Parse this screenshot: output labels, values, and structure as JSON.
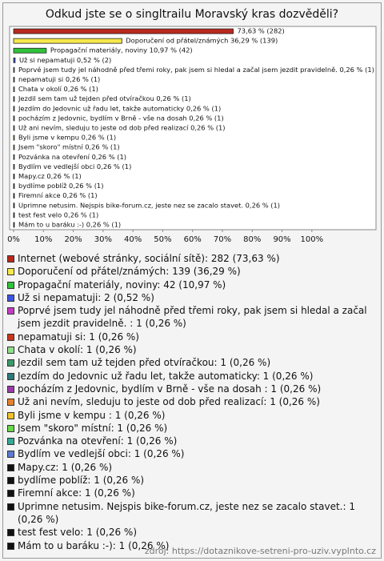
{
  "chart_data": {
    "type": "bar",
    "orientation": "horizontal",
    "title": "Odkud jste se o singltrailu Moravský kras dozvěděli?",
    "values": [
      73.63,
      36.29,
      10.97,
      0.52,
      0.26,
      0.26,
      0.26,
      0.26,
      0.26,
      0.26,
      0.26,
      0.26,
      0.26,
      0.26,
      0.26,
      0.26,
      0.26,
      0.26,
      0.26,
      0.26,
      0.26
    ],
    "value_labels": [
      "73,63 % (282)",
      "Doporučení od přátel/známých 36,29 % (139)",
      "Propagační materiály, noviny 10,97 % (42)",
      "Už si nepamatuji 0,52 % (2)",
      "Poprvé jsem tudy jel náhodně před třemi roky, pak jsem si hledal a začal jsem jezdit pravidelně.  0,26 % (1)",
      "nepamatuji si 0,26 % (1)",
      "Chata v okolí 0,26 % (1)",
      "Jezdil sem tam už tejden před otvíračkou 0,26 % (1)",
      "Jezdím do Jedovnic už řadu let,  takže automaticky 0,26 % (1)",
      "pocházím z Jedovnic, bydlím v Brně - vše na dosah  0,26 % (1)",
      "Už ani nevím, sleduju to jeste od dob před realizací 0,26 % (1)",
      "Byli jsme v kempu  0,26 % (1)",
      "Jsem \"skoro\" místní 0,26 % (1)",
      "Pozvánka na otevření 0,26 % (1)",
      "Bydlím ve vedlejší obci 0,26 % (1)",
      "Mapy.cz 0,26 % (1)",
      "bydlíme poblíž 0,26 % (1)",
      "Firemní akce 0,26 % (1)",
      "Uprimne netusim. Nejspis bike-forum.cz, jeste nez se zacalo stavet.  0,26 % (1)",
      "test fest velo 0,26 % (1)",
      "Mám to u baráku :-) 0,26 % (1)"
    ],
    "legend": [
      "Internet (webové stránky, sociální sítě): 282 (73,63 %)",
      "Doporučení od přátel/známých: 139 (36,29 %)",
      "Propagační materiály, noviny: 42 (10,97 %)",
      "Už si nepamatuji: 2 (0,52 %)",
      "Poprvé jsem tudy jel náhodně před třemi roky, pak jsem si hledal a začal jsem jezdit pravidelně. : 1 (0,26 %)",
      "nepamatuji si: 1 (0,26 %)",
      "Chata v okolí: 1 (0,26 %)",
      "Jezdil sem tam už tejden před otvíračkou: 1 (0,26 %)",
      "Jezdím do Jedovnic už řadu let,  takže automaticky: 1 (0,26 %)",
      "pocházím z Jedovnic, bydlím v Brně - vše na dosah : 1 (0,26 %)",
      "Už ani nevím, sleduju to jeste od dob před realizací: 1 (0,26 %)",
      "Byli jsme v kempu : 1 (0,26 %)",
      "Jsem \"skoro\" místní: 1 (0,26 %)",
      "Pozvánka na otevření: 1 (0,26 %)",
      "Bydlím ve vedlejší obci: 1 (0,26 %)",
      "Mapy.cz: 1 (0,26 %)",
      "bydlíme poblíž: 1 (0,26 %)",
      "Firemní akce: 1 (0,26 %)",
      "Uprimne netusim. Nejspis bike-forum.cz, jeste nez se zacalo stavet.: 1 (0,26 %)",
      "test fest velo: 1 (0,26 %)",
      "Mám to u baráku :-): 1 (0,26 %)"
    ],
    "colors": [
      "#b8281d",
      "#f6e84a",
      "#2fc23a",
      "#3b55e0",
      "#c43cc4",
      "#c9361c",
      "#8fde8a",
      "#3a9a6a",
      "#2e7a7a",
      "#9a3aa8",
      "#e5822a",
      "#efc229",
      "#66d948",
      "#36a896",
      "#5a7bd0",
      "#111111",
      "#111111",
      "#111111",
      "#111111",
      "#111111",
      "#111111"
    ],
    "xlim": [
      0,
      121.5
    ],
    "xticks": [
      {
        "value": 0,
        "label": "0%"
      },
      {
        "value": 10,
        "label": "10%"
      },
      {
        "value": 20,
        "label": "20%"
      },
      {
        "value": 30,
        "label": "30%"
      },
      {
        "value": 40,
        "label": "40%"
      },
      {
        "value": 50,
        "label": "50%"
      },
      {
        "value": 60,
        "label": "60%"
      },
      {
        "value": 70,
        "label": "70%"
      },
      {
        "value": 80,
        "label": "80%"
      },
      {
        "value": 90,
        "label": "90%"
      },
      {
        "value": 100,
        "label": "100%"
      }
    ],
    "source": "zdroj: https://dotaznikove-setreni-pro-uziv.vyplnto.cz"
  }
}
